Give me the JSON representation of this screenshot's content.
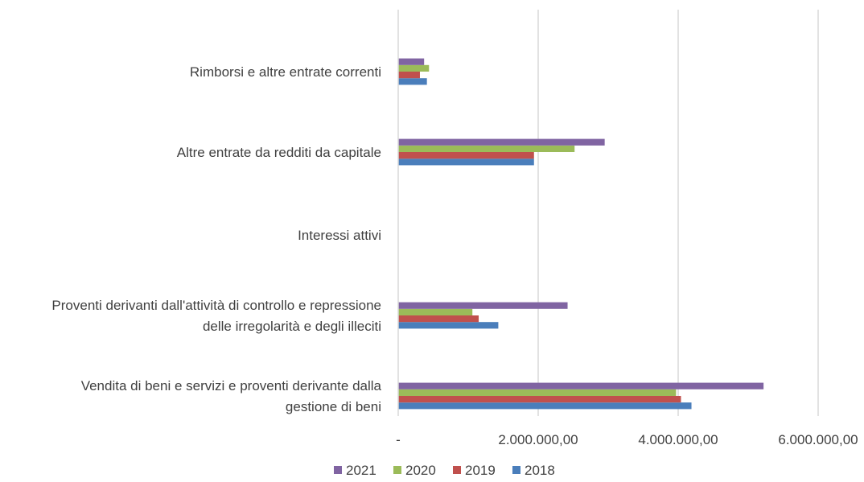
{
  "chart_data": {
    "type": "bar",
    "orientation": "horizontal",
    "title": "",
    "xlabel": "",
    "ylabel": "",
    "categories": [
      "Vendita di beni e servizi e proventi derivante dalla gestione di beni",
      "Proventi derivanti dall'attività di controllo e repressione delle irregolarità e degli illeciti",
      "Interessi attivi",
      "Altre entrate da redditi da capitale",
      "Rimborsi e altre entrate correnti"
    ],
    "category_label_lines": [
      [
        "Vendita di beni e servizi e proventi derivante dalla",
        "gestione di beni"
      ],
      [
        "Proventi derivanti dall'attività di controllo e repressione",
        "delle irregolarità e degli illeciti"
      ],
      [
        "Interessi attivi"
      ],
      [
        "Altre entrate da redditi da capitale"
      ],
      [
        "Rimborsi e altre entrate correnti"
      ]
    ],
    "series": [
      {
        "name": "2018",
        "color": "#4a7ebb",
        "values": [
          4190000,
          1430000,
          0,
          1940000,
          410000
        ]
      },
      {
        "name": "2019",
        "color": "#c0504d",
        "values": [
          4040000,
          1150000,
          0,
          1940000,
          310000
        ]
      },
      {
        "name": "2020",
        "color": "#9bbb59",
        "values": [
          3970000,
          1060000,
          0,
          2520000,
          440000
        ]
      },
      {
        "name": "2021",
        "color": "#8064a2",
        "values": [
          5220000,
          2420000,
          0,
          2950000,
          370000
        ]
      }
    ],
    "legend_order": [
      "2021",
      "2020",
      "2019",
      "2018"
    ],
    "xlim": [
      0,
      6000000
    ],
    "x_ticks": [
      0,
      2000000,
      4000000,
      6000000
    ],
    "x_tick_labels": [
      "-",
      "2.000.000,00",
      "4.000.000,00",
      "6.000.000,00"
    ],
    "grid": true,
    "legend_position": "bottom"
  }
}
